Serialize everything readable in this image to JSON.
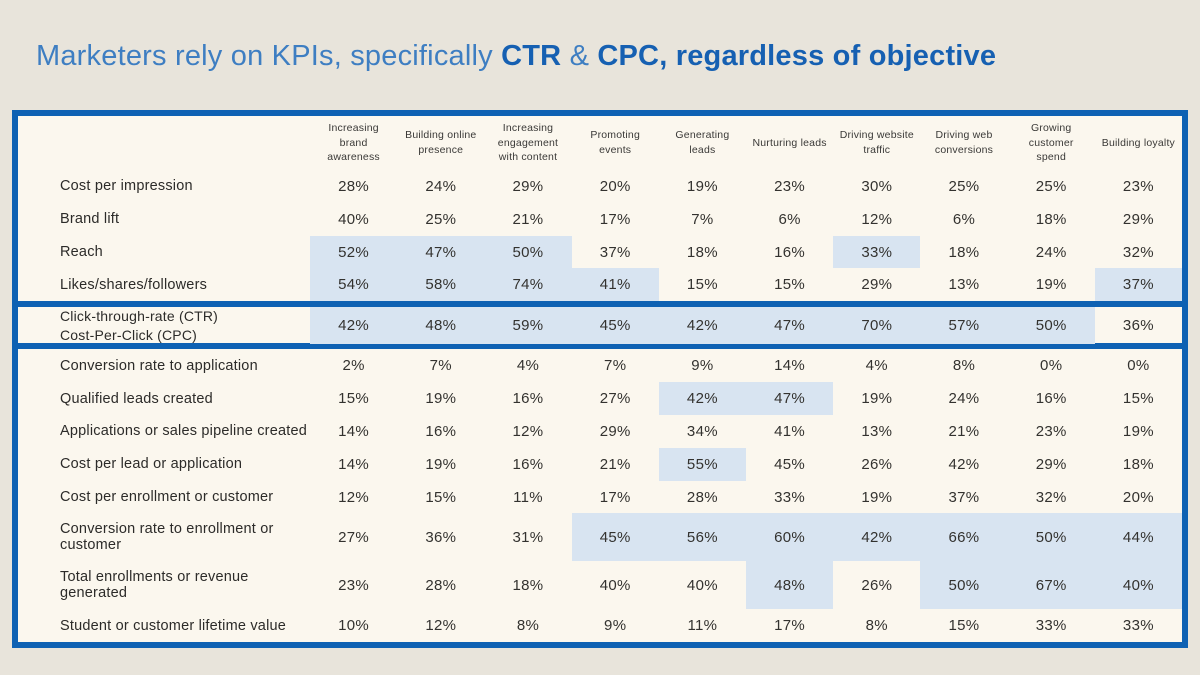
{
  "title": {
    "part1": "Marketers rely on KPIs, specifically ",
    "part2": "CTR",
    "part3": " & ",
    "part4": "CPC, regardless of objective"
  },
  "colors": {
    "page_background": "#e8e4db",
    "table_background": "#fbf7ee",
    "table_border_blue": "#0e61b3",
    "cell_highlight_blue": "#d8e4f1",
    "title_light_blue": "#3e7ec2",
    "title_bold_blue": "#1660b2"
  },
  "chart_data": {
    "type": "table",
    "unit": "%",
    "columns": [
      "Increasing brand awareness",
      "Building online presence",
      "Increasing engagement with content",
      "Promoting events",
      "Generating leads",
      "Nurturing leads",
      "Driving website traffic",
      "Driving web conversions",
      "Growing customer spend",
      "Building loyalty"
    ],
    "rows": [
      {
        "label": "Cost per impression",
        "values": [
          28,
          24,
          29,
          20,
          19,
          23,
          30,
          25,
          25,
          23
        ],
        "highlights": [
          0,
          0,
          0,
          0,
          0,
          0,
          0,
          0,
          0,
          0
        ],
        "emphasized": false
      },
      {
        "label": "Brand lift",
        "values": [
          40,
          25,
          21,
          17,
          7,
          6,
          12,
          6,
          18,
          29
        ],
        "highlights": [
          0,
          0,
          0,
          0,
          0,
          0,
          0,
          0,
          0,
          0
        ],
        "emphasized": false
      },
      {
        "label": "Reach",
        "values": [
          52,
          47,
          50,
          37,
          18,
          16,
          33,
          18,
          24,
          32
        ],
        "highlights": [
          1,
          1,
          1,
          0,
          0,
          0,
          1,
          0,
          0,
          0
        ],
        "emphasized": false
      },
      {
        "label": "Likes/shares/followers",
        "values": [
          54,
          58,
          74,
          41,
          15,
          15,
          29,
          13,
          19,
          37
        ],
        "highlights": [
          1,
          1,
          1,
          1,
          0,
          0,
          0,
          0,
          0,
          1
        ],
        "emphasized": false
      },
      {
        "label": "Click-through-rate (CTR)",
        "label2": "Cost-Per-Click (CPC)",
        "values": [
          42,
          48,
          59,
          45,
          42,
          47,
          70,
          57,
          50,
          36
        ],
        "highlights": [
          1,
          1,
          1,
          1,
          1,
          1,
          1,
          1,
          1,
          0
        ],
        "emphasized": true
      },
      {
        "label": "Conversion rate to application",
        "values": [
          2,
          7,
          4,
          7,
          9,
          14,
          4,
          8,
          0,
          0
        ],
        "highlights": [
          0,
          0,
          0,
          0,
          0,
          0,
          0,
          0,
          0,
          0
        ],
        "emphasized": false
      },
      {
        "label": "Qualified leads created",
        "values": [
          15,
          19,
          16,
          27,
          42,
          47,
          19,
          24,
          16,
          15
        ],
        "highlights": [
          0,
          0,
          0,
          0,
          1,
          1,
          0,
          0,
          0,
          0
        ],
        "emphasized": false
      },
      {
        "label": "Applications or sales pipeline created",
        "values": [
          14,
          16,
          12,
          29,
          34,
          41,
          13,
          21,
          23,
          19
        ],
        "highlights": [
          0,
          0,
          0,
          0,
          0,
          0,
          0,
          0,
          0,
          0
        ],
        "emphasized": false
      },
      {
        "label": "Cost per lead or application",
        "values": [
          14,
          19,
          16,
          21,
          55,
          45,
          26,
          42,
          29,
          18
        ],
        "highlights": [
          0,
          0,
          0,
          0,
          1,
          0,
          0,
          0,
          0,
          0
        ],
        "emphasized": false
      },
      {
        "label": "Cost per enrollment or customer",
        "values": [
          12,
          15,
          11,
          17,
          28,
          33,
          19,
          37,
          32,
          20
        ],
        "highlights": [
          0,
          0,
          0,
          0,
          0,
          0,
          0,
          0,
          0,
          0
        ],
        "emphasized": false
      },
      {
        "label": "Conversion rate to enrollment or customer",
        "values": [
          27,
          36,
          31,
          45,
          56,
          60,
          42,
          66,
          50,
          44
        ],
        "highlights": [
          0,
          0,
          0,
          1,
          1,
          1,
          1,
          1,
          1,
          1
        ],
        "emphasized": false
      },
      {
        "label": "Total enrollments or revenue generated",
        "values": [
          23,
          28,
          18,
          40,
          40,
          48,
          26,
          50,
          67,
          40
        ],
        "highlights": [
          0,
          0,
          0,
          0,
          0,
          1,
          0,
          1,
          1,
          1
        ],
        "emphasized": false
      },
      {
        "label": "Student or customer lifetime value",
        "values": [
          10,
          12,
          8,
          9,
          11,
          17,
          8,
          15,
          33,
          33
        ],
        "highlights": [
          0,
          0,
          0,
          0,
          0,
          0,
          0,
          0,
          0,
          0
        ],
        "emphasized": false
      }
    ]
  }
}
